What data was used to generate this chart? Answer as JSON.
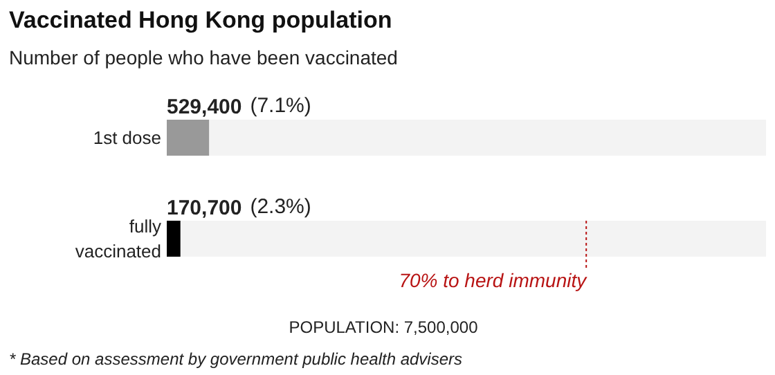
{
  "chart_data": {
    "type": "bar",
    "orientation": "horizontal",
    "title": "Vaccinated Hong Kong population",
    "subtitle": "Number of people who have been vaccinated",
    "categories": [
      "1st dose",
      "fully vaccinated"
    ],
    "values": [
      529400,
      170700
    ],
    "colors": [
      "#999999",
      "#000000"
    ],
    "value_labels": [
      "529,400 (7.1%)",
      "170,700 (2.3%)"
    ],
    "xlim": [
      0,
      7500000
    ],
    "tick_labels": false,
    "grid": false,
    "ref_lines": [
      {
        "axis": "x",
        "value": 5250000,
        "label": "70% to herd immunity",
        "color": "#b81414",
        "line_style": "dashed"
      }
    ],
    "annotations": [
      "POPULATION: 7,500,000",
      "* Based on assessment by government public health advisers"
    ]
  }
}
